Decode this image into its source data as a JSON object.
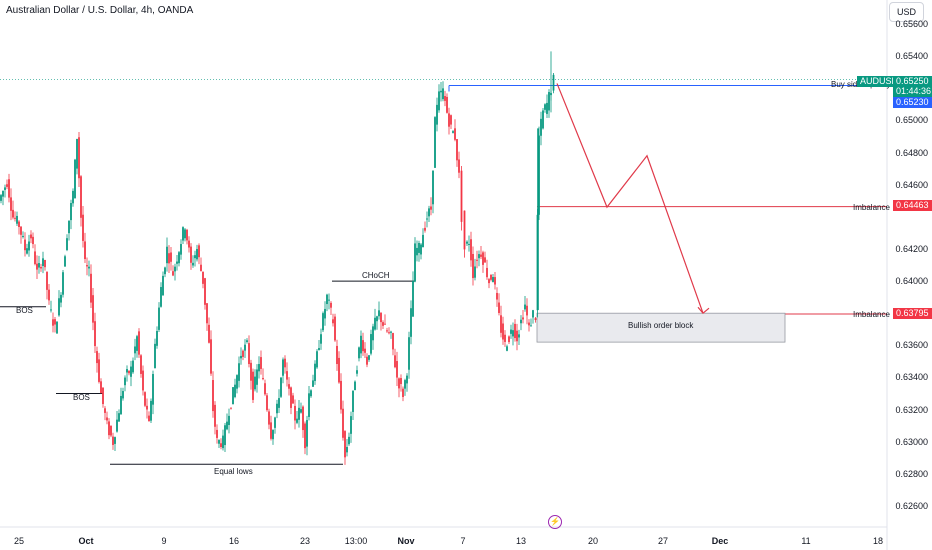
{
  "header": {
    "title": "Australian Dollar / U.S. Dollar, 4h, OANDA",
    "currency_button": "USD"
  },
  "price_axis": {
    "labels": [
      "0.65600",
      "0.65400",
      "0.65000",
      "0.64800",
      "0.64600",
      "0.64200",
      "0.64000",
      "0.63600",
      "0.63400",
      "0.63200",
      "0.63000",
      "0.62800",
      "0.62600"
    ],
    "values": [
      0.656,
      0.654,
      0.65,
      0.648,
      0.646,
      0.642,
      0.64,
      0.636,
      0.634,
      0.632,
      0.63,
      0.628,
      0.626
    ]
  },
  "time_axis": {
    "labels": [
      "25",
      "Oct",
      "9",
      "16",
      "23",
      "13:00",
      "Nov",
      "7",
      "13",
      "20",
      "27",
      "Dec",
      "11",
      "18"
    ],
    "bold": [
      false,
      true,
      false,
      false,
      false,
      false,
      true,
      false,
      false,
      false,
      false,
      true,
      false,
      false
    ]
  },
  "price_tags": {
    "symbol": "AUDUSD",
    "last": "0.65250",
    "countdown": "01:44:36",
    "bid": "0.65230",
    "imbalance_upper": "0.64463",
    "imbalance_lower": "0.63795"
  },
  "annotations": {
    "buy_side": "Buy side liquidity",
    "imbalance_upper": "Imbalance",
    "imbalance_lower": "Imbalance",
    "order_block": "Bullish order block",
    "choch": "CHoCH",
    "bos_1": "BOS",
    "bos_2": "BOS",
    "equal_lows": "Equal lows"
  },
  "colors": {
    "up": "#089981",
    "down": "#f23645",
    "line_blue": "#2962ff",
    "line_red": "#e03a4a",
    "tag_green": "#089981",
    "tag_blue": "#2962ff",
    "tag_red": "#f23645",
    "lightning": "#9c27b0"
  },
  "chart_data": {
    "type": "candlestick",
    "symbol": "AUDUSD",
    "timeframe": "4h",
    "ylim": [
      0.6255,
      0.657
    ],
    "key_levels": {
      "buy_side_liquidity": 0.6523,
      "imbalance_upper": 0.64463,
      "imbalance_lower": 0.63795,
      "order_block_top": 0.638,
      "order_block_bottom": 0.6362,
      "choch": 0.64,
      "bos_1": 0.6384,
      "bos_2": 0.633,
      "equal_lows": 0.6286
    },
    "projection": [
      0.6523,
      0.6446,
      0.6478,
      0.638
    ],
    "swing_path": [
      [
        0,
        0.645
      ],
      [
        8,
        0.6462
      ],
      [
        14,
        0.644
      ],
      [
        20,
        0.6435
      ],
      [
        26,
        0.642
      ],
      [
        32,
        0.6428
      ],
      [
        38,
        0.6405
      ],
      [
        44,
        0.6415
      ],
      [
        50,
        0.6385
      ],
      [
        56,
        0.637
      ],
      [
        62,
        0.6395
      ],
      [
        68,
        0.643
      ],
      [
        74,
        0.6455
      ],
      [
        78,
        0.649
      ],
      [
        82,
        0.644
      ],
      [
        86,
        0.641
      ],
      [
        90,
        0.6405
      ],
      [
        96,
        0.636
      ],
      [
        102,
        0.633
      ],
      [
        108,
        0.631
      ],
      [
        114,
        0.63
      ],
      [
        120,
        0.632
      ],
      [
        126,
        0.634
      ],
      [
        132,
        0.6345
      ],
      [
        138,
        0.6365
      ],
      [
        144,
        0.633
      ],
      [
        150,
        0.631
      ],
      [
        156,
        0.636
      ],
      [
        162,
        0.6395
      ],
      [
        168,
        0.642
      ],
      [
        174,
        0.6405
      ],
      [
        180,
        0.642
      ],
      [
        186,
        0.6435
      ],
      [
        192,
        0.641
      ],
      [
        198,
        0.642
      ],
      [
        204,
        0.64
      ],
      [
        210,
        0.636
      ],
      [
        214,
        0.632
      ],
      [
        218,
        0.63
      ],
      [
        224,
        0.63
      ],
      [
        230,
        0.632
      ],
      [
        236,
        0.6335
      ],
      [
        242,
        0.6355
      ],
      [
        248,
        0.636
      ],
      [
        254,
        0.633
      ],
      [
        260,
        0.635
      ],
      [
        266,
        0.633
      ],
      [
        272,
        0.6305
      ],
      [
        278,
        0.632
      ],
      [
        284,
        0.635
      ],
      [
        290,
        0.633
      ],
      [
        296,
        0.6315
      ],
      [
        302,
        0.632
      ],
      [
        306,
        0.63
      ],
      [
        310,
        0.633
      ],
      [
        316,
        0.6345
      ],
      [
        322,
        0.637
      ],
      [
        328,
        0.639
      ],
      [
        334,
        0.6375
      ],
      [
        338,
        0.635
      ],
      [
        342,
        0.632
      ],
      [
        346,
        0.629
      ],
      [
        350,
        0.6305
      ],
      [
        356,
        0.634
      ],
      [
        362,
        0.6365
      ],
      [
        368,
        0.635
      ],
      [
        374,
        0.637
      ],
      [
        380,
        0.638
      ],
      [
        386,
        0.637
      ],
      [
        392,
        0.6365
      ],
      [
        398,
        0.634
      ],
      [
        404,
        0.633
      ],
      [
        408,
        0.6345
      ],
      [
        412,
        0.638
      ],
      [
        416,
        0.642
      ],
      [
        420,
        0.642
      ],
      [
        424,
        0.643
      ],
      [
        428,
        0.644
      ],
      [
        432,
        0.6445
      ],
      [
        436,
        0.65
      ],
      [
        440,
        0.6515
      ],
      [
        444,
        0.6518
      ],
      [
        448,
        0.6505
      ],
      [
        452,
        0.6495
      ],
      [
        456,
        0.649
      ],
      [
        460,
        0.6465
      ],
      [
        463,
        0.644
      ],
      [
        466,
        0.642
      ],
      [
        470,
        0.6425
      ],
      [
        474,
        0.6405
      ],
      [
        478,
        0.6415
      ],
      [
        482,
        0.6418
      ],
      [
        486,
        0.641
      ],
      [
        490,
        0.64
      ],
      [
        494,
        0.6405
      ],
      [
        498,
        0.6385
      ],
      [
        502,
        0.637
      ],
      [
        506,
        0.636
      ],
      [
        510,
        0.6365
      ],
      [
        514,
        0.6372
      ],
      [
        518,
        0.6365
      ],
      [
        522,
        0.6375
      ],
      [
        526,
        0.6385
      ],
      [
        530,
        0.637
      ],
      [
        534,
        0.638
      ],
      [
        537,
        0.6378
      ],
      [
        538,
        0.644
      ],
      [
        540,
        0.649
      ],
      [
        544,
        0.6505
      ],
      [
        548,
        0.651
      ],
      [
        552,
        0.652
      ],
      [
        555,
        0.6525
      ]
    ]
  }
}
